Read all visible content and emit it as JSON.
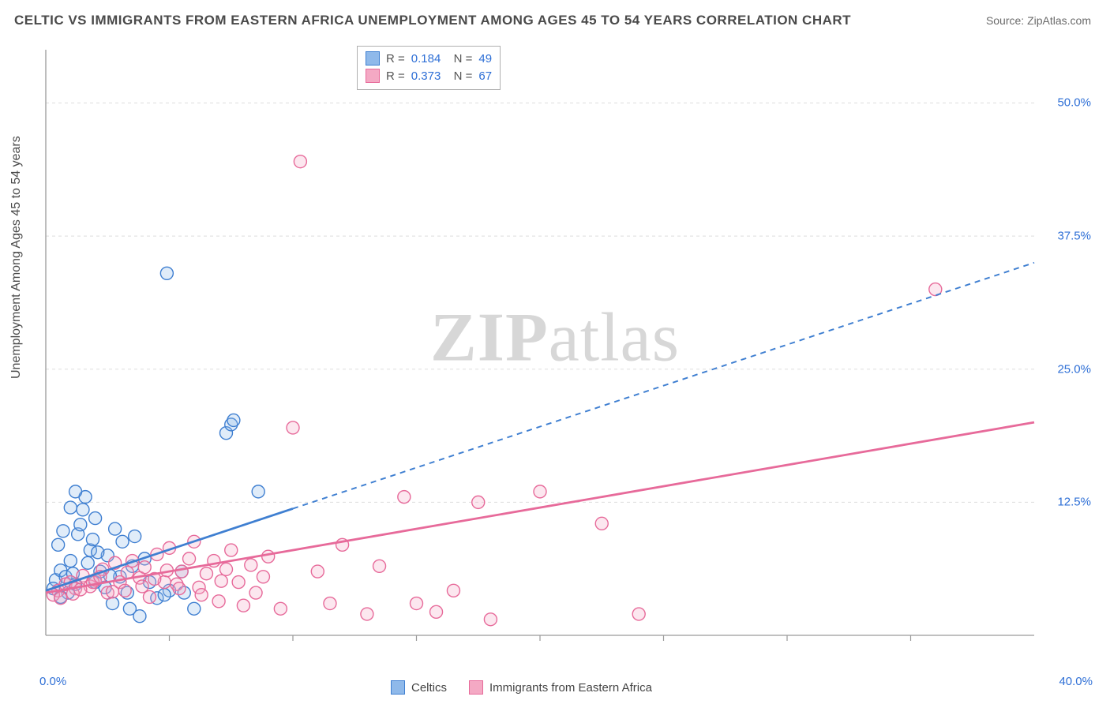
{
  "title": "CELTIC VS IMMIGRANTS FROM EASTERN AFRICA UNEMPLOYMENT AMONG AGES 45 TO 54 YEARS CORRELATION CHART",
  "source_prefix": "Source: ",
  "source_name": "ZipAtlas.com",
  "ylabel": "Unemployment Among Ages 45 to 54 years",
  "watermark": {
    "bold": "ZIP",
    "rest": "atlas"
  },
  "chart": {
    "type": "scatter",
    "xlim": [
      0,
      40
    ],
    "ylim": [
      0,
      55
    ],
    "xtick_min_label": "0.0%",
    "xtick_max_label": "40.0%",
    "xticks_minor": [
      5,
      10,
      15,
      20,
      25,
      30,
      35
    ],
    "yticks": [
      {
        "v": 12.5,
        "label": "12.5%"
      },
      {
        "v": 25.0,
        "label": "25.0%"
      },
      {
        "v": 37.5,
        "label": "37.5%"
      },
      {
        "v": 50.0,
        "label": "50.0%"
      }
    ],
    "background_color": "#ffffff",
    "grid_color": "#dddddd",
    "axis_color": "#9a9a9a",
    "tick_label_color": "#2e6fd6",
    "marker_radius": 8,
    "marker_stroke_width": 1.4,
    "marker_fill_opacity": 0.28,
    "trend_line_width": 2.8,
    "trend_dash": "7,6",
    "series": [
      {
        "name": "Celtics",
        "color_stroke": "#3f7fd1",
        "color_fill": "#8fb9ea",
        "R": "0.184",
        "N": "49",
        "trend": {
          "x1": 0,
          "y1": 4.2,
          "x2": 40,
          "y2": 35.0,
          "solid_until_x": 10
        },
        "points": [
          [
            0.4,
            5.2
          ],
          [
            0.6,
            6.1
          ],
          [
            0.8,
            5.5
          ],
          [
            1.0,
            7.0
          ],
          [
            1.1,
            5.8
          ],
          [
            1.3,
            9.5
          ],
          [
            1.4,
            10.4
          ],
          [
            1.5,
            11.8
          ],
          [
            1.6,
            13.0
          ],
          [
            1.8,
            8.0
          ],
          [
            1.9,
            9.0
          ],
          [
            2.0,
            5.0
          ],
          [
            2.0,
            11.0
          ],
          [
            2.2,
            6.0
          ],
          [
            2.4,
            4.5
          ],
          [
            2.5,
            7.5
          ],
          [
            2.7,
            3.0
          ],
          [
            2.8,
            10.0
          ],
          [
            3.0,
            5.5
          ],
          [
            3.1,
            8.8
          ],
          [
            3.3,
            4.0
          ],
          [
            3.5,
            6.5
          ],
          [
            3.6,
            9.3
          ],
          [
            3.8,
            1.8
          ],
          [
            4.0,
            7.2
          ],
          [
            4.2,
            5.0
          ],
          [
            4.5,
            3.5
          ],
          [
            5.0,
            4.2
          ],
          [
            5.5,
            6.0
          ],
          [
            6.0,
            2.5
          ],
          [
            4.9,
            34.0
          ],
          [
            7.3,
            19.0
          ],
          [
            7.5,
            19.8
          ],
          [
            7.6,
            20.2
          ],
          [
            8.6,
            13.5
          ],
          [
            0.9,
            4.0
          ],
          [
            1.2,
            4.8
          ],
          [
            1.7,
            6.8
          ],
          [
            2.1,
            7.8
          ],
          [
            2.6,
            5.6
          ],
          [
            0.5,
            8.5
          ],
          [
            0.7,
            9.8
          ],
          [
            1.0,
            12.0
          ],
          [
            1.2,
            13.5
          ],
          [
            3.4,
            2.5
          ],
          [
            4.8,
            3.8
          ],
          [
            0.3,
            4.4
          ],
          [
            0.6,
            3.6
          ],
          [
            5.6,
            4.0
          ]
        ]
      },
      {
        "name": "Immigrants from Eastern Africa",
        "color_stroke": "#e76a9a",
        "color_fill": "#f4a9c4",
        "R": "0.373",
        "N": "67",
        "trend": {
          "x1": 0,
          "y1": 4.0,
          "x2": 40,
          "y2": 20.0,
          "solid_until_x": 40
        },
        "points": [
          [
            0.5,
            4.2
          ],
          [
            0.8,
            4.8
          ],
          [
            1.0,
            5.0
          ],
          [
            1.2,
            4.4
          ],
          [
            1.5,
            5.6
          ],
          [
            1.8,
            4.6
          ],
          [
            2.0,
            5.2
          ],
          [
            2.3,
            6.2
          ],
          [
            2.5,
            4.0
          ],
          [
            2.8,
            6.8
          ],
          [
            3.0,
            5.0
          ],
          [
            3.2,
            4.2
          ],
          [
            3.5,
            7.0
          ],
          [
            3.8,
            5.4
          ],
          [
            4.0,
            6.4
          ],
          [
            4.2,
            3.6
          ],
          [
            4.5,
            7.6
          ],
          [
            4.8,
            5.0
          ],
          [
            5.0,
            8.2
          ],
          [
            5.3,
            4.8
          ],
          [
            5.5,
            6.0
          ],
          [
            5.8,
            7.2
          ],
          [
            6.0,
            8.8
          ],
          [
            6.2,
            4.5
          ],
          [
            6.5,
            5.8
          ],
          [
            6.8,
            7.0
          ],
          [
            7.0,
            3.2
          ],
          [
            7.3,
            6.2
          ],
          [
            7.5,
            8.0
          ],
          [
            7.8,
            5.0
          ],
          [
            8.0,
            2.8
          ],
          [
            8.3,
            6.6
          ],
          [
            8.5,
            4.0
          ],
          [
            9.0,
            7.4
          ],
          [
            9.5,
            2.5
          ],
          [
            10.0,
            19.5
          ],
          [
            10.3,
            44.5
          ],
          [
            11.0,
            6.0
          ],
          [
            11.5,
            3.0
          ],
          [
            12.0,
            8.5
          ],
          [
            13.0,
            2.0
          ],
          [
            13.5,
            6.5
          ],
          [
            14.5,
            13.0
          ],
          [
            15.0,
            3.0
          ],
          [
            15.8,
            2.2
          ],
          [
            16.5,
            4.2
          ],
          [
            17.5,
            12.5
          ],
          [
            18.0,
            1.5
          ],
          [
            20.0,
            13.5
          ],
          [
            22.5,
            10.5
          ],
          [
            24.0,
            2.0
          ],
          [
            36.0,
            32.5
          ],
          [
            0.3,
            3.8
          ],
          [
            0.6,
            3.5
          ],
          [
            1.1,
            3.9
          ],
          [
            1.4,
            4.3
          ],
          [
            1.9,
            5.0
          ],
          [
            2.2,
            5.5
          ],
          [
            2.7,
            4.1
          ],
          [
            3.3,
            5.9
          ],
          [
            3.9,
            4.6
          ],
          [
            4.4,
            5.3
          ],
          [
            4.9,
            6.1
          ],
          [
            5.4,
            4.4
          ],
          [
            6.3,
            3.8
          ],
          [
            7.1,
            5.1
          ],
          [
            8.8,
            5.5
          ]
        ]
      }
    ]
  },
  "legend_bottom": [
    {
      "label": "Celtics",
      "series": 0
    },
    {
      "label": "Immigrants from Eastern Africa",
      "series": 1
    }
  ]
}
